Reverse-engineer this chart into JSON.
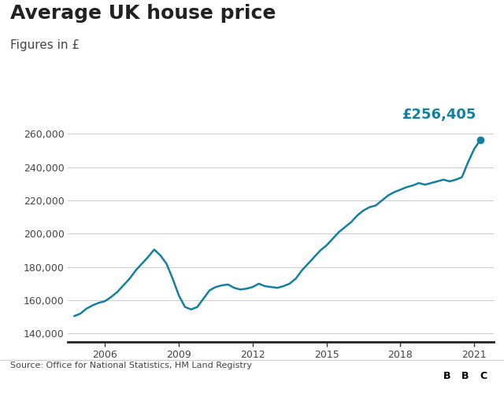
{
  "title": "Average UK house price",
  "subtitle": "Figures in £",
  "annotation": "£256,405",
  "annotation_color": "#1380a1",
  "source": "Source: Office for National Statistics, HM Land Registry",
  "bbc_label": "BBC",
  "line_color": "#1380a1",
  "background_color": "#ffffff",
  "ylim": [
    135000,
    272000
  ],
  "yticks": [
    140000,
    160000,
    180000,
    200000,
    220000,
    240000,
    260000
  ],
  "x_start_year": 2004.5,
  "x_end_year": 2021.8,
  "xtick_years": [
    2006,
    2009,
    2012,
    2015,
    2018,
    2021
  ],
  "data": [
    [
      2004.75,
      150500
    ],
    [
      2005.0,
      152000
    ],
    [
      2005.25,
      155000
    ],
    [
      2005.5,
      157000
    ],
    [
      2005.75,
      158500
    ],
    [
      2006.0,
      159500
    ],
    [
      2006.25,
      162000
    ],
    [
      2006.5,
      165000
    ],
    [
      2006.75,
      169000
    ],
    [
      2007.0,
      173000
    ],
    [
      2007.25,
      178000
    ],
    [
      2007.5,
      182000
    ],
    [
      2007.75,
      186000
    ],
    [
      2008.0,
      190500
    ],
    [
      2008.25,
      187000
    ],
    [
      2008.5,
      182000
    ],
    [
      2008.75,
      173000
    ],
    [
      2009.0,
      163000
    ],
    [
      2009.25,
      156000
    ],
    [
      2009.5,
      154500
    ],
    [
      2009.75,
      156000
    ],
    [
      2010.0,
      161000
    ],
    [
      2010.25,
      166000
    ],
    [
      2010.5,
      168000
    ],
    [
      2010.75,
      169000
    ],
    [
      2011.0,
      169500
    ],
    [
      2011.25,
      167500
    ],
    [
      2011.5,
      166500
    ],
    [
      2011.75,
      167000
    ],
    [
      2012.0,
      168000
    ],
    [
      2012.25,
      170000
    ],
    [
      2012.5,
      168500
    ],
    [
      2012.75,
      168000
    ],
    [
      2013.0,
      167500
    ],
    [
      2013.25,
      168500
    ],
    [
      2013.5,
      170000
    ],
    [
      2013.75,
      173000
    ],
    [
      2014.0,
      178000
    ],
    [
      2014.25,
      182000
    ],
    [
      2014.5,
      186000
    ],
    [
      2014.75,
      190000
    ],
    [
      2015.0,
      193000
    ],
    [
      2015.25,
      197000
    ],
    [
      2015.5,
      201000
    ],
    [
      2015.75,
      204000
    ],
    [
      2016.0,
      207000
    ],
    [
      2016.25,
      211000
    ],
    [
      2016.5,
      214000
    ],
    [
      2016.75,
      216000
    ],
    [
      2017.0,
      217000
    ],
    [
      2017.25,
      220000
    ],
    [
      2017.5,
      223000
    ],
    [
      2017.75,
      225000
    ],
    [
      2018.0,
      226500
    ],
    [
      2018.25,
      228000
    ],
    [
      2018.5,
      229000
    ],
    [
      2018.75,
      230500
    ],
    [
      2019.0,
      229500
    ],
    [
      2019.25,
      230500
    ],
    [
      2019.5,
      231500
    ],
    [
      2019.75,
      232500
    ],
    [
      2020.0,
      231500
    ],
    [
      2020.25,
      232500
    ],
    [
      2020.5,
      234000
    ],
    [
      2020.75,
      243000
    ],
    [
      2021.0,
      251000
    ],
    [
      2021.25,
      256405
    ]
  ]
}
